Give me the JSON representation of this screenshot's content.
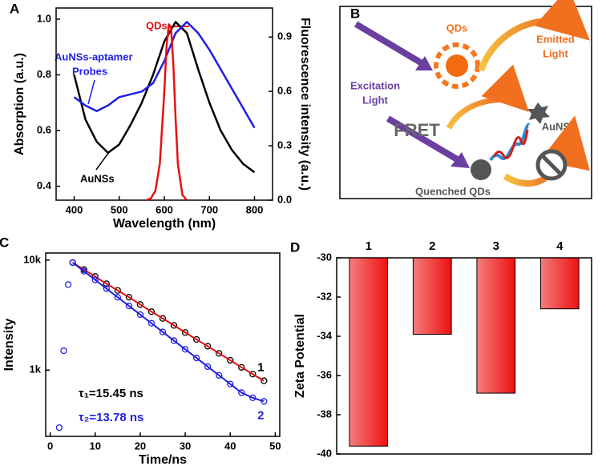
{
  "chart_data": [
    {
      "type": "line",
      "panel_label": "A",
      "x_label": "Wavelength (nm)",
      "y_label": "Absorption (a.u.)",
      "y2_label": "Fluorescence intensity (a.u.)",
      "xlim": [
        360,
        840
      ],
      "xticks": [
        400,
        500,
        600,
        700,
        800
      ],
      "ylim": [
        0.35,
        1.04
      ],
      "yticks": [
        0.4,
        0.6,
        0.8,
        {
          "value": 1.0,
          "label": "1.0"
        }
      ],
      "y2lim": [
        0,
        1.06
      ],
      "y2ticks": [
        {
          "value": 0,
          "label": "0.0"
        },
        0.3,
        0.6,
        0.9
      ],
      "annotations": [
        "QDs",
        "AuNSs-aptamer",
        "Probes",
        "AuNSs"
      ],
      "series": [
        {
          "color": "#000000",
          "x": [
            400,
            425,
            450,
            475,
            500,
            525,
            550,
            575,
            600,
            625,
            650,
            675,
            700,
            725,
            750,
            775,
            800
          ],
          "values": [
            0.8,
            0.64,
            0.56,
            0.52,
            0.55,
            0.62,
            0.7,
            0.8,
            0.92,
            0.99,
            0.95,
            0.82,
            0.7,
            0.6,
            0.53,
            0.48,
            0.45
          ]
        },
        {
          "color": "#1f1fe6",
          "x": [
            400,
            425,
            450,
            475,
            500,
            525,
            550,
            575,
            600,
            625,
            650,
            675,
            700,
            725,
            750,
            775,
            800
          ],
          "values": [
            0.72,
            0.69,
            0.67,
            0.69,
            0.72,
            0.73,
            0.74,
            0.77,
            0.85,
            0.95,
            0.99,
            0.95,
            0.89,
            0.82,
            0.75,
            0.68,
            0.61
          ]
        },
        {
          "color": "#e81010",
          "axis": "y2",
          "x": [
            560,
            570,
            580,
            590,
            600,
            605,
            610,
            615,
            620,
            625,
            630,
            640,
            650
          ],
          "values": [
            0,
            0.01,
            0.05,
            0.2,
            0.6,
            0.85,
            0.97,
            0.95,
            0.75,
            0.45,
            0.2,
            0.03,
            0
          ]
        }
      ]
    },
    {
      "type": "scatter",
      "panel_label": "C",
      "log_y": true,
      "x_label": "Time/ns",
      "y_label": "Intensity",
      "xlim": [
        -1,
        51
      ],
      "xticks": [
        0,
        10,
        20,
        30,
        40,
        50
      ],
      "ylim": [
        250,
        11600
      ],
      "yticks": [
        {
          "value": 1000,
          "label": "1k"
        },
        {
          "value": 10000,
          "label": "10k"
        }
      ],
      "annotations": [
        "τ₁=15.45 ns",
        "τ₂=13.78 ns"
      ],
      "x": [
        2,
        3,
        4,
        5,
        7.5,
        10,
        12.5,
        15,
        17.5,
        20,
        22.5,
        25,
        27.5,
        30,
        32.5,
        35,
        37.5,
        40,
        42.5,
        45,
        47.5
      ],
      "series": [
        {
          "name": "1",
          "color": "#000000",
          "fit_color": "#e01010",
          "values": [
            null,
            null,
            null,
            9500,
            8200,
            7100,
            6100,
            5300,
            4600,
            3950,
            3400,
            2950,
            2550,
            2200,
            1900,
            1650,
            1420,
            1230,
            1060,
            920,
            800
          ]
        },
        {
          "name": "2",
          "color": "#1f1fe6",
          "fit_color": "#1f1fe6",
          "values": [
            300,
            1500,
            6000,
            9500,
            7923,
            6608,
            5511,
            4596,
            3833,
            3197,
            2666,
            2224,
            1854,
            1547,
            1290,
            1076,
            897,
            748,
            624,
            560,
            520
          ]
        }
      ]
    },
    {
      "type": "bar",
      "panel_label": "D",
      "y_label": "Zeta Potential",
      "color": "#ee1111",
      "categories": [
        "1",
        "2",
        "3",
        "4"
      ],
      "values": [
        -39.6,
        -33.9,
        -36.9,
        -32.6
      ],
      "ylim": [
        -40,
        -30
      ],
      "yticks": [
        -40,
        -38,
        -36,
        -34,
        -32,
        -30
      ]
    }
  ],
  "diagram": {
    "panel_label": "B",
    "qds": "QDs",
    "emitted": [
      "Emitted",
      "Light"
    ],
    "excitation": [
      "Excitation",
      "Light"
    ],
    "auns": "AuNSs",
    "fret": "FRET",
    "quenched": "Quenched QDs"
  }
}
